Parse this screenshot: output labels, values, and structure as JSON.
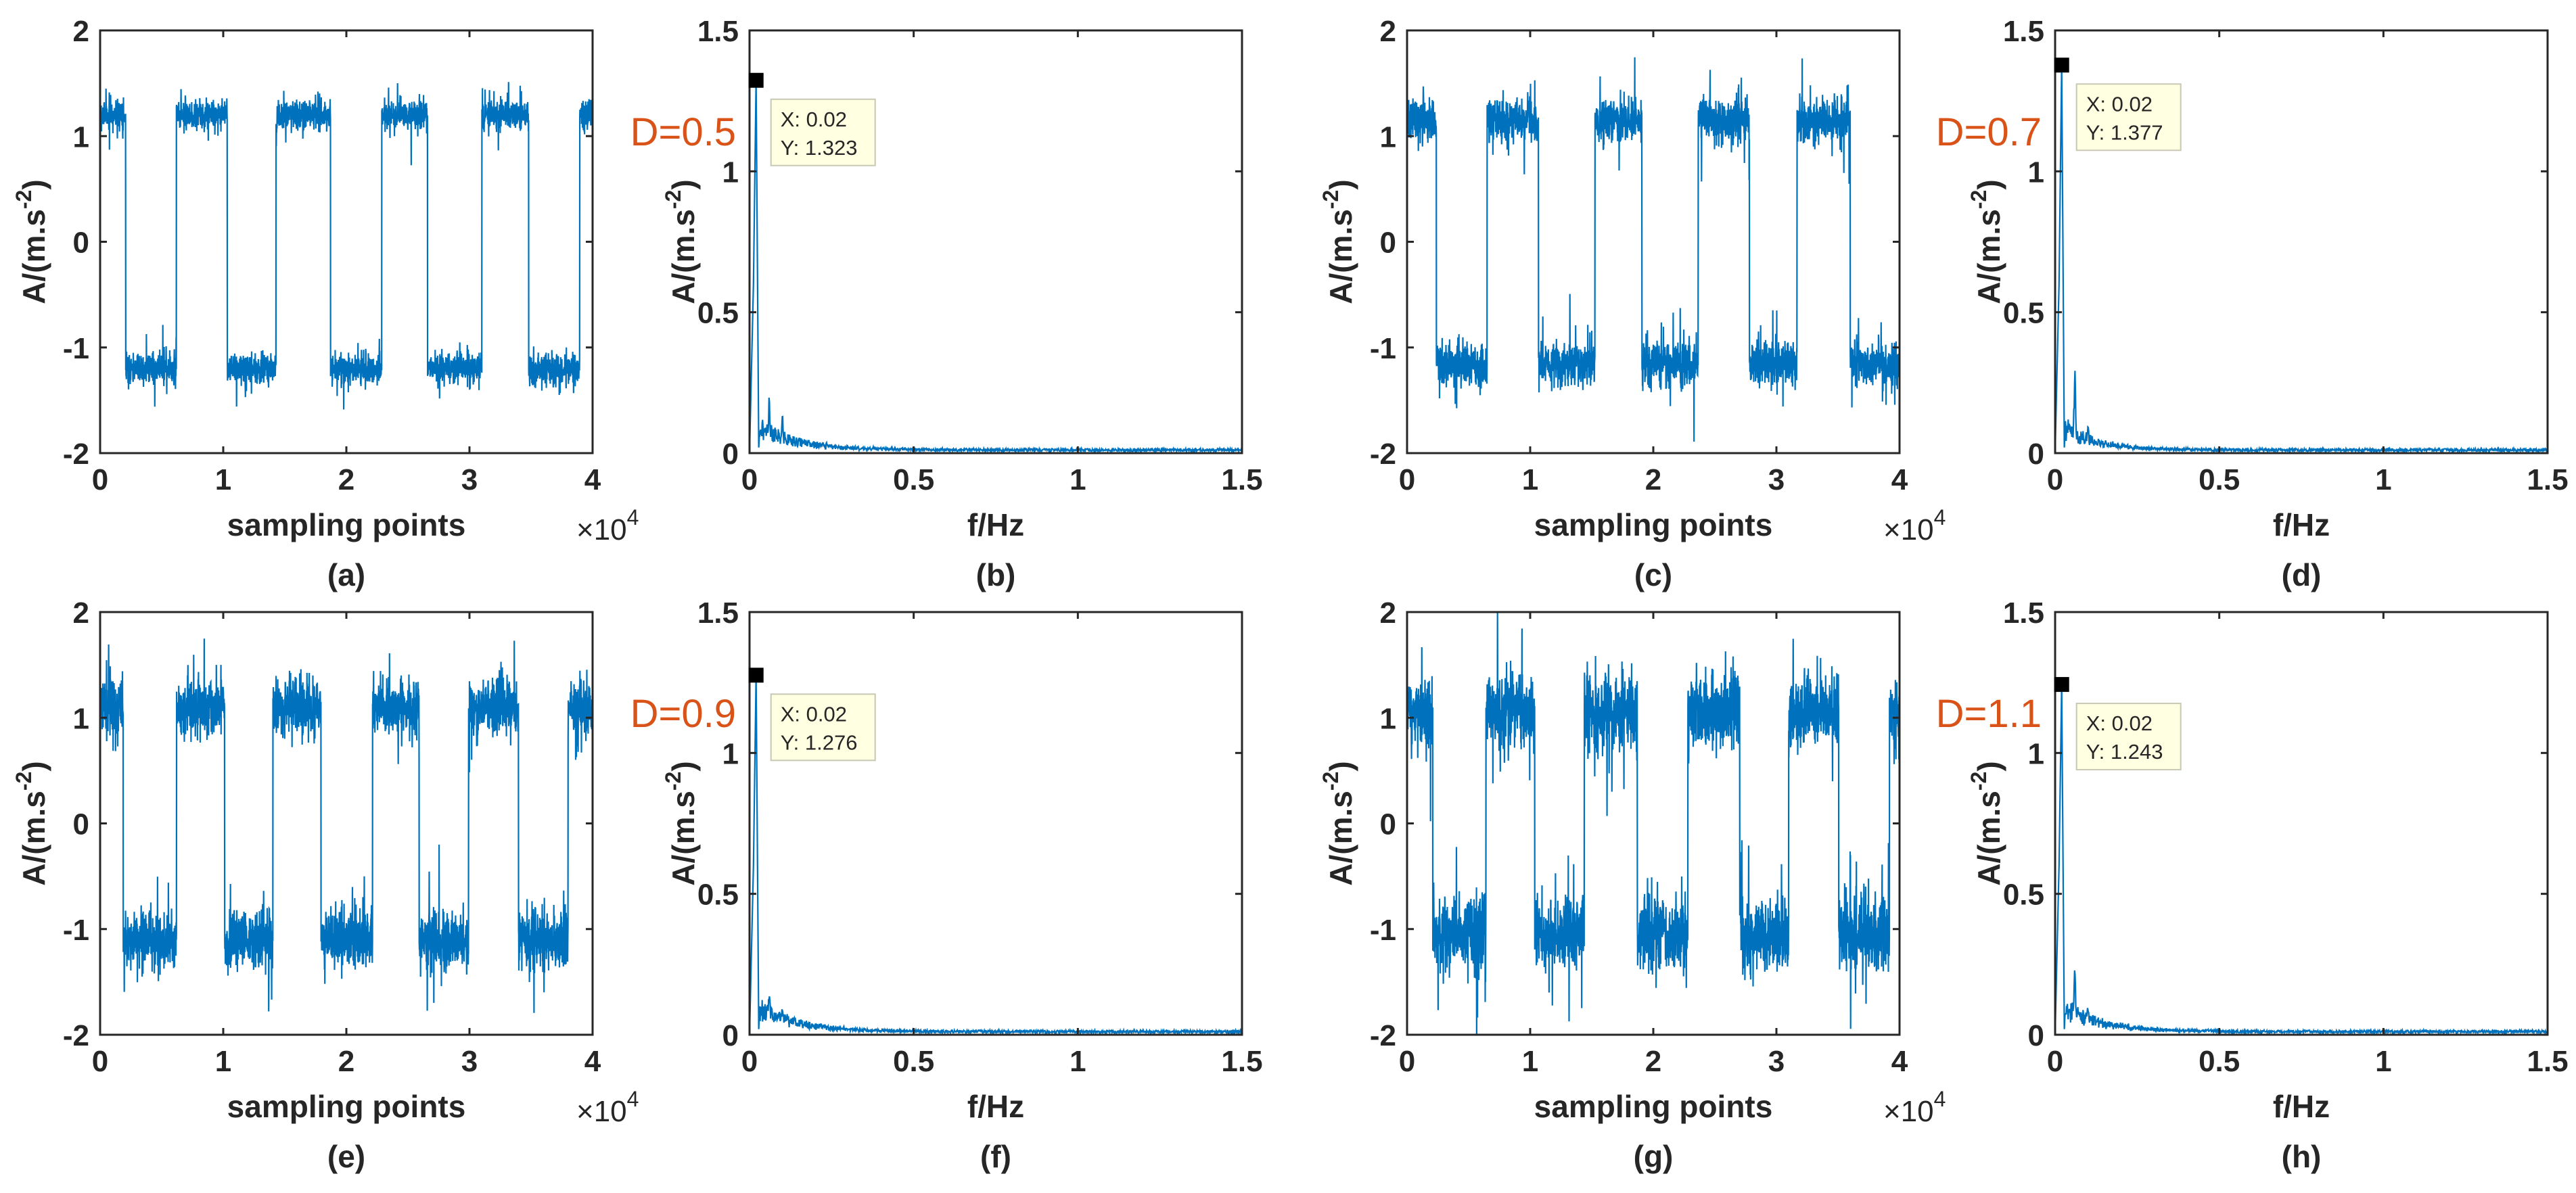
{
  "figure": {
    "panels": [
      "a",
      "b",
      "c",
      "d",
      "e",
      "f",
      "g",
      "h"
    ]
  },
  "colors": {
    "series": "#0072bd",
    "d_label": "#d95319",
    "axis": "#262626",
    "datatip_bg": "#ffffe1"
  },
  "chart_data": [
    {
      "id": "a",
      "type": "line",
      "caption": "(a)",
      "xlabel": "sampling points",
      "x_scale": "×10",
      "x_scale_exp": "4",
      "ylabel": "A/(m.s",
      "ylabel_exp": "-2",
      "ylabel_end": ")",
      "xlim": [
        0,
        4
      ],
      "ylim": [
        -2,
        2
      ],
      "xticks": [
        0,
        1,
        2,
        3,
        4
      ],
      "yticks": [
        -2,
        -1,
        0,
        1,
        2
      ],
      "xtick_labels": [
        "0",
        "1",
        "2",
        "3",
        "4"
      ],
      "ytick_labels": [
        "-2",
        "-1",
        "0",
        "1",
        "2"
      ],
      "signal": {
        "kind": "square",
        "level": 1.2,
        "noise": 0.14,
        "spike": 0.3,
        "period": 0.41,
        "start_high": true,
        "first_switch": 0.22,
        "points": 3000,
        "seed": 11
      }
    },
    {
      "id": "b",
      "type": "line",
      "caption": "(b)",
      "xlabel": "f/Hz",
      "ylabel": "A/(m.s",
      "ylabel_exp": "-2",
      "ylabel_end": ")",
      "xlim": [
        0,
        1.5
      ],
      "ylim": [
        0,
        1.5
      ],
      "xticks": [
        0,
        0.5,
        1,
        1.5
      ],
      "yticks": [
        0,
        0.5,
        1,
        1.5
      ],
      "xtick_labels": [
        "0",
        "0.5",
        "1",
        "1.5"
      ],
      "ytick_labels": [
        "0",
        "0.5",
        "1",
        "1.5"
      ],
      "d_label": "D=0.5",
      "datatip": {
        "x_text": "X: 0.02",
        "y_text": "Y: 1.323",
        "x": 0.02,
        "y": 1.323
      },
      "spectrum": {
        "peak_x": 0.02,
        "peak_y": 1.323,
        "secondary": [
          [
            0.06,
            0.22
          ],
          [
            0.1,
            0.16
          ]
        ],
        "decay": 0.12,
        "floor": 0.006,
        "points": 1200,
        "seed": 21
      }
    },
    {
      "id": "c",
      "type": "line",
      "caption": "(c)",
      "xlabel": "sampling points",
      "x_scale": "×10",
      "x_scale_exp": "4",
      "ylabel": "A/(m.s",
      "ylabel_exp": "-2",
      "ylabel_end": ")",
      "xlim": [
        0,
        4
      ],
      "ylim": [
        -2,
        2
      ],
      "xticks": [
        0,
        1,
        2,
        3,
        4
      ],
      "yticks": [
        -2,
        -1,
        0,
        1,
        2
      ],
      "xtick_labels": [
        "0",
        "1",
        "2",
        "3",
        "4"
      ],
      "ytick_labels": [
        "-2",
        "-1",
        "0",
        "1",
        "2"
      ],
      "signal": {
        "kind": "square",
        "level": 1.15,
        "noise": 0.2,
        "spike": 0.45,
        "period": 0.42,
        "start_high": true,
        "first_switch": 0.25,
        "points": 3000,
        "seed": 31
      }
    },
    {
      "id": "d",
      "type": "line",
      "caption": "(d)",
      "xlabel": "f/Hz",
      "ylabel": "A/(m.s",
      "ylabel_exp": "-2",
      "ylabel_end": ")",
      "xlim": [
        0,
        1.5
      ],
      "ylim": [
        0,
        1.5
      ],
      "xticks": [
        0,
        0.5,
        1,
        1.5
      ],
      "yticks": [
        0,
        0.5,
        1,
        1.5
      ],
      "xtick_labels": [
        "0",
        "0.5",
        "1",
        "1.5"
      ],
      "ytick_labels": [
        "0",
        "0.5",
        "1",
        "1.5"
      ],
      "d_label": "D=0.7",
      "datatip": {
        "x_text": "X: 0.02",
        "y_text": "Y: 1.377",
        "x": 0.02,
        "y": 1.377
      },
      "spectrum": {
        "peak_x": 0.02,
        "peak_y": 1.377,
        "secondary": [
          [
            0.06,
            0.32
          ],
          [
            0.1,
            0.12
          ]
        ],
        "decay": 0.1,
        "floor": 0.006,
        "points": 1200,
        "seed": 41
      }
    },
    {
      "id": "e",
      "type": "line",
      "caption": "(e)",
      "xlabel": "sampling points",
      "x_scale": "×10",
      "x_scale_exp": "4",
      "ylabel": "A/(m.s",
      "ylabel_exp": "-2",
      "ylabel_end": ")",
      "xlim": [
        0,
        4
      ],
      "ylim": [
        -2,
        2
      ],
      "xticks": [
        0,
        1,
        2,
        3,
        4
      ],
      "yticks": [
        -2,
        -1,
        0,
        1,
        2
      ],
      "xtick_labels": [
        "0",
        "1",
        "2",
        "3",
        "4"
      ],
      "ytick_labels": [
        "-2",
        "-1",
        "0",
        "1",
        "2"
      ],
      "signal": {
        "kind": "square",
        "level": 1.1,
        "noise": 0.26,
        "spike": 0.6,
        "period": 0.4,
        "start_high": true,
        "first_switch": 0.2,
        "points": 3000,
        "seed": 51
      }
    },
    {
      "id": "f",
      "type": "line",
      "caption": "(f)",
      "xlabel": "f/Hz",
      "ylabel": "A/(m.s",
      "ylabel_exp": "-2",
      "ylabel_end": ")",
      "xlim": [
        0,
        1.5
      ],
      "ylim": [
        0,
        1.5
      ],
      "xticks": [
        0,
        0.5,
        1,
        1.5
      ],
      "yticks": [
        0,
        0.5,
        1,
        1.5
      ],
      "xtick_labels": [
        "0",
        "0.5",
        "1",
        "1.5"
      ],
      "ytick_labels": [
        "0",
        "0.5",
        "1",
        "1.5"
      ],
      "d_label": "D=0.9",
      "datatip": {
        "x_text": "X: 0.02",
        "y_text": "Y: 1.276",
        "x": 0.02,
        "y": 1.276
      },
      "spectrum": {
        "peak_x": 0.02,
        "peak_y": 1.276,
        "secondary": [
          [
            0.06,
            0.18
          ],
          [
            0.1,
            0.12
          ]
        ],
        "decay": 0.12,
        "floor": 0.006,
        "points": 1200,
        "seed": 61
      }
    },
    {
      "id": "g",
      "type": "line",
      "caption": "(g)",
      "xlabel": "sampling points",
      "x_scale": "×10",
      "x_scale_exp": "4",
      "ylabel": "A/(m.s",
      "ylabel_exp": "-2",
      "ylabel_end": ")",
      "xlim": [
        0,
        4
      ],
      "ylim": [
        -2,
        2
      ],
      "xticks": [
        0,
        1,
        2,
        3,
        4
      ],
      "yticks": [
        -2,
        -1,
        0,
        1,
        2
      ],
      "xtick_labels": [
        "0",
        "1",
        "2",
        "3",
        "4"
      ],
      "ytick_labels": [
        "-2",
        "-1",
        "0",
        "1",
        "2"
      ],
      "signal": {
        "kind": "square",
        "level": 1.05,
        "noise": 0.34,
        "spike": 0.85,
        "period": 0.41,
        "start_high": true,
        "first_switch": 0.22,
        "points": 3000,
        "seed": 71
      }
    },
    {
      "id": "h",
      "type": "line",
      "caption": "(h)",
      "xlabel": "f/Hz",
      "ylabel": "A/(m.s",
      "ylabel_exp": "-2",
      "ylabel_end": ")",
      "xlim": [
        0,
        1.5
      ],
      "ylim": [
        0,
        1.5
      ],
      "xticks": [
        0,
        0.5,
        1,
        1.5
      ],
      "yticks": [
        0,
        0.5,
        1,
        1.5
      ],
      "xtick_labels": [
        "0",
        "0.5",
        "1",
        "1.5"
      ],
      "ytick_labels": [
        "0",
        "0.5",
        "1",
        "1.5"
      ],
      "d_label": "D=1.1",
      "datatip": {
        "x_text": "X: 0.02",
        "y_text": "Y: 1.243",
        "x": 0.02,
        "y": 1.243
      },
      "spectrum": {
        "peak_x": 0.02,
        "peak_y": 1.243,
        "secondary": [
          [
            0.06,
            0.27
          ],
          [
            0.1,
            0.13
          ]
        ],
        "decay": 0.12,
        "floor": 0.006,
        "points": 1200,
        "seed": 81
      }
    }
  ]
}
